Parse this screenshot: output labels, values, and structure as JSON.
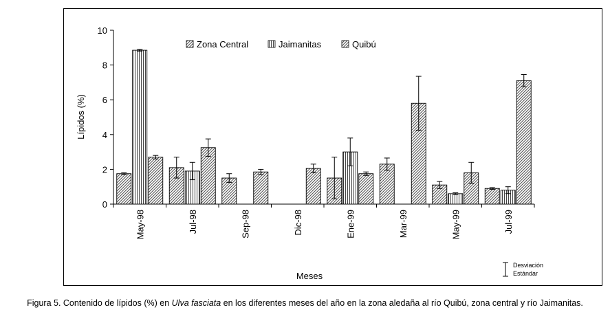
{
  "chart_data": {
    "type": "bar",
    "xlabel": "Meses",
    "ylabel": "Lípidos (%)",
    "ylim": [
      0,
      10
    ],
    "yticks": [
      0,
      2,
      4,
      6,
      8,
      10
    ],
    "grid": false,
    "legend_position": "top",
    "categories": [
      "May-98",
      "Jul-98",
      "Sep-98",
      "Dic-98",
      "Ene-99",
      "Mar-99",
      "May-99",
      "Jul-99"
    ],
    "series": [
      {
        "name": "Zona Central",
        "pattern": "diagonal-hatch",
        "values": [
          1.75,
          2.1,
          1.5,
          null,
          1.5,
          2.3,
          1.1,
          0.9
        ],
        "errors": [
          0.05,
          0.6,
          0.25,
          null,
          1.2,
          0.35,
          0.2,
          0.05
        ]
      },
      {
        "name": "Jaimanitas",
        "pattern": "vertical-lines",
        "values": [
          8.85,
          1.9,
          null,
          null,
          3.0,
          null,
          0.6,
          0.8
        ],
        "errors": [
          0.05,
          0.5,
          null,
          null,
          0.8,
          null,
          0.05,
          0.2
        ]
      },
      {
        "name": "Quibú",
        "pattern": "diagonal-hatch",
        "values": [
          2.7,
          3.25,
          1.85,
          2.05,
          1.75,
          5.8,
          1.8,
          7.1
        ],
        "errors": [
          0.1,
          0.5,
          0.15,
          0.25,
          0.1,
          1.55,
          0.6,
          0.35
        ]
      }
    ],
    "sd_legend": "Desviación Estándar",
    "sd_legend_lines": [
      "Desviación",
      "Estándar"
    ]
  },
  "caption": {
    "prefix": "Figura 5. Contenido de lípidos (%) en ",
    "italic": "Ulva fasciata",
    "suffix": " en los diferentes meses del año en la zona aledaña al río Quibú, zona central y río Jaimanitas."
  }
}
